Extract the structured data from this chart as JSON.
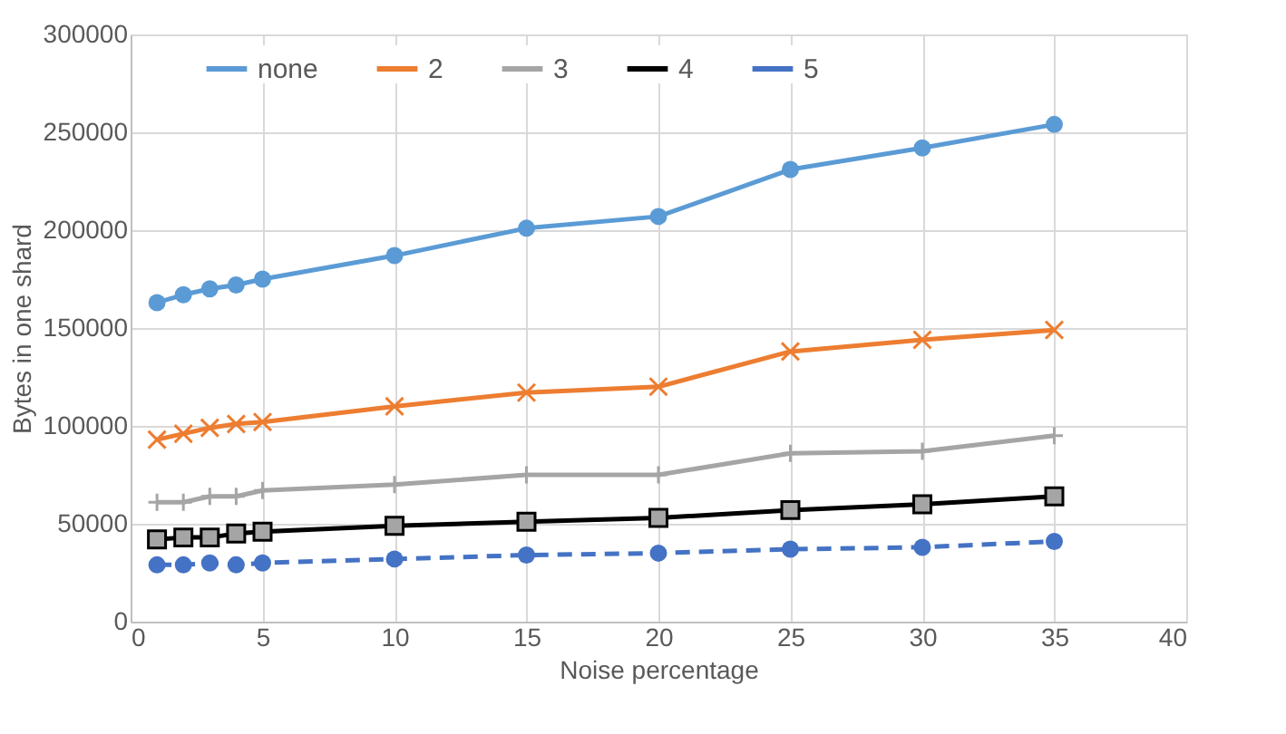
{
  "chart_data": {
    "type": "line",
    "xlabel": "Noise percentage",
    "ylabel": "Bytes in one shard",
    "x": [
      1,
      2,
      3,
      4,
      5,
      10,
      15,
      20,
      25,
      30,
      35
    ],
    "xlim": [
      0,
      40
    ],
    "xticks": [
      0,
      5,
      10,
      15,
      20,
      25,
      30,
      35,
      40
    ],
    "ylim": [
      0,
      300000
    ],
    "yticks": [
      0,
      50000,
      100000,
      150000,
      200000,
      250000,
      300000
    ],
    "grid": true,
    "legend": "top",
    "series": [
      {
        "name": "none",
        "color": "#5b9bd5",
        "marker": "circle",
        "line_style": "solid",
        "values": [
          163000,
          167000,
          170000,
          172000,
          175000,
          187000,
          201000,
          207000,
          231000,
          242000,
          254000
        ]
      },
      {
        "name": "2",
        "color": "#ed7d31",
        "marker": "x",
        "line_style": "solid",
        "values": [
          93000,
          96000,
          99000,
          101000,
          102000,
          110000,
          117000,
          120000,
          138000,
          144000,
          149000
        ]
      },
      {
        "name": "3",
        "color": "#a5a5a5",
        "marker": "cross",
        "line_style": "solid",
        "values": [
          61000,
          61000,
          64000,
          64000,
          67000,
          70000,
          75000,
          75000,
          86000,
          87000,
          95000
        ]
      },
      {
        "name": "4",
        "color": "#000000",
        "marker": "square",
        "line_style": "solid",
        "values": [
          42000,
          43000,
          43000,
          45000,
          46000,
          49000,
          51000,
          53000,
          57000,
          60000,
          64000
        ]
      },
      {
        "name": "5",
        "color": "#4472c4",
        "marker": "circle",
        "line_style": "dashed",
        "values": [
          29000,
          29000,
          30000,
          29000,
          30000,
          32000,
          34000,
          35000,
          37000,
          38000,
          41000
        ]
      }
    ]
  }
}
